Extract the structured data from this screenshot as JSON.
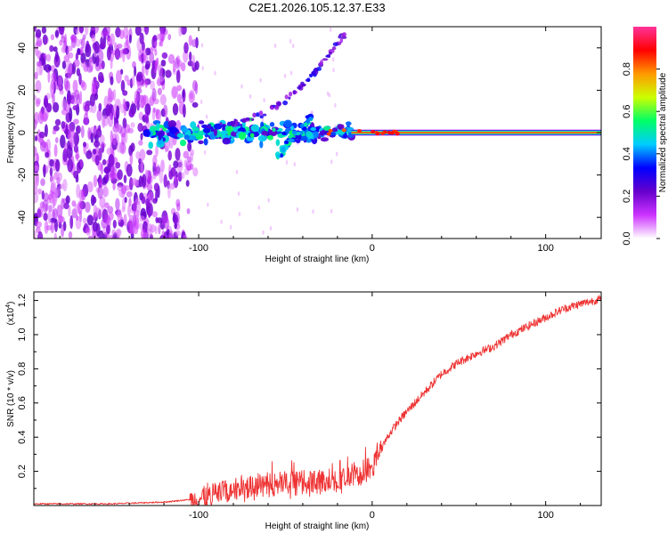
{
  "title": "C2E1.2026.105.12.37.E33",
  "chart_data": [
    {
      "type": "heatmap",
      "name": "spectrogram",
      "xlabel": "Height of straight line (km)",
      "ylabel": "Frequency (Hz)",
      "xlim": [
        -195,
        132
      ],
      "ylim": [
        -50,
        50
      ],
      "x_ticks": [
        -100,
        0,
        100
      ],
      "x_tick_labels": [
        "-100",
        "0",
        "100"
      ],
      "y_ticks": [
        -40,
        -20,
        0,
        20,
        40
      ],
      "y_tick_labels": [
        "-40",
        "-20",
        "0",
        "20",
        "40"
      ],
      "colorbar": {
        "label": "Normalized spectral amplitude",
        "range": [
          0,
          1
        ],
        "ticks": [
          0.0,
          0.2,
          0.4,
          0.6,
          0.8
        ],
        "tick_labels": [
          "0.0",
          "0.2",
          "0.4",
          "0.6",
          "0.8"
        ],
        "colormap": [
          "#ffffff",
          "#cc33ff",
          "#6600cc",
          "#0000ff",
          "#00ccff",
          "#00ff66",
          "#ccff00",
          "#ff9900",
          "#ff0000",
          "#ff3399"
        ]
      },
      "features": {
        "noise_region_x": [
          -195,
          -100
        ],
        "carrier_line": {
          "x": [
            -130,
            132
          ],
          "frequency": 0
        },
        "upper_branch": {
          "x": [
            -95,
            -15
          ],
          "frequency": [
            3,
            48
          ]
        },
        "lower_branch": {
          "x": [
            -55,
            -35
          ],
          "frequency": [
            -12,
            8
          ]
        }
      }
    },
    {
      "type": "line",
      "name": "snr",
      "xlabel": "Height of straight line (km)",
      "ylabel": "SNR (10 * v/v)",
      "multiplier_label": "(x10",
      "multiplier_exp": "4",
      "multiplier_close": ")",
      "xlim": [
        -195,
        132
      ],
      "ylim": [
        0,
        1.25
      ],
      "x_ticks": [
        -100,
        0,
        100
      ],
      "x_tick_labels": [
        "-100",
        "0",
        "100"
      ],
      "y_ticks": [
        0.2,
        0.4,
        0.6,
        0.8,
        1.0,
        1.2
      ],
      "y_tick_labels": [
        "0.2",
        "0.4",
        "0.6",
        "0.8",
        "1.0",
        "1.2"
      ],
      "series": [
        {
          "name": "SNR",
          "color": "#ee3333",
          "x": [
            -195,
            -150,
            -120,
            -100,
            -90,
            -80,
            -60,
            -40,
            -20,
            -10,
            0,
            5,
            10,
            15,
            20,
            30,
            40,
            50,
            60,
            70,
            80,
            90,
            100,
            110,
            120,
            132
          ],
          "values": [
            0.01,
            0.01,
            0.02,
            0.04,
            0.07,
            0.1,
            0.12,
            0.13,
            0.15,
            0.17,
            0.22,
            0.33,
            0.42,
            0.49,
            0.55,
            0.66,
            0.77,
            0.84,
            0.89,
            0.93,
            1.0,
            1.05,
            1.1,
            1.15,
            1.18,
            1.21
          ]
        }
      ]
    }
  ]
}
